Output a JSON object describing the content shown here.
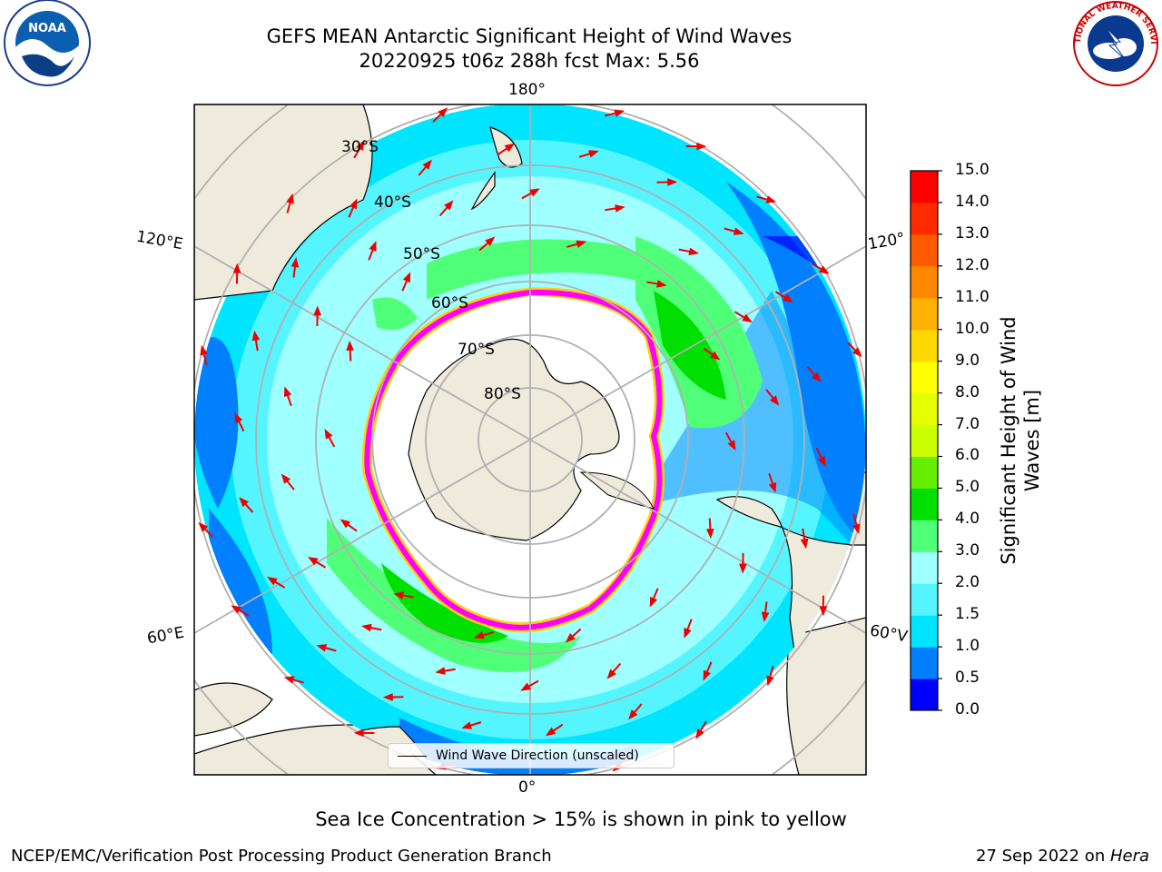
{
  "title": {
    "line1": "GEFS MEAN Antarctic Significant Height of Wind Waves",
    "line2": "20220925 t06z 288h fcst   Max: 5.56"
  },
  "map": {
    "projection": "south-polar-stereographic",
    "longitude_labels": {
      "top": "180°",
      "bottom": "0°",
      "upper_left": "120°E",
      "lower_left": "60°E",
      "upper_right": "120°",
      "lower_right": "60°V"
    },
    "latitude_labels": [
      "30°S",
      "40°S",
      "50°S",
      "60°S",
      "70°S",
      "80°S"
    ],
    "colors": {
      "land": "#efebdc",
      "sea_ice_edge": [
        "#ff00ff",
        "#ff8c00",
        "#ffd000"
      ],
      "arrows": "#ee0000",
      "grid": "#b0b0b0"
    }
  },
  "legend": {
    "label": "Wind Wave Direction (unscaled)"
  },
  "colorbar": {
    "label": "Significant Height of Wind Waves [m]",
    "ticks": [
      "15.0",
      "14.0",
      "13.0",
      "12.0",
      "11.0",
      "10.0",
      "9.0",
      "8.0",
      "7.0",
      "6.0",
      "5.0",
      "4.0",
      "3.0",
      "2.0",
      "1.5",
      "1.0",
      "0.5",
      "0.0"
    ],
    "colors": [
      "#0000ff",
      "#0080ff",
      "#00e5ff",
      "#55f5ff",
      "#a0ffff",
      "#50ff78",
      "#00e000",
      "#66ee00",
      "#ccff00",
      "#e6ff00",
      "#ffff00",
      "#ffd800",
      "#ffb000",
      "#ff8800",
      "#ff5a00",
      "#ff2a00",
      "#ff0000"
    ]
  },
  "subtitle": "Sea Ice Concentration > 15% is shown in pink to yellow",
  "footer": {
    "left": "NCEP/EMC/Verification Post Processing Product Generation Branch",
    "right_prefix": "27 Sep 2022 on ",
    "right_italic": "Hera"
  },
  "logos": {
    "left": "NOAA",
    "right": "NATIONAL WEATHER SERVICE"
  }
}
